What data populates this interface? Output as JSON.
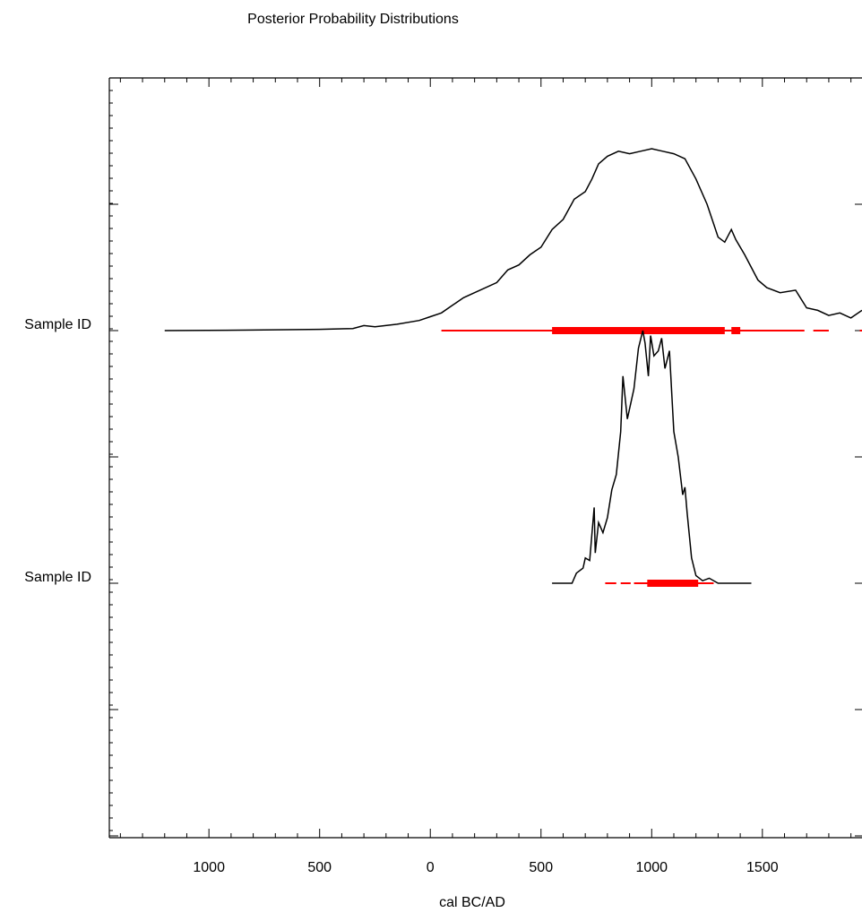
{
  "chart_data": {
    "type": "area",
    "title": "Posterior Probability Distributions",
    "xlabel": "cal BC/AD",
    "ylabel": "",
    "xlim": [
      -1450,
      1950
    ],
    "x_ticks": [
      {
        "value": -1000,
        "label": "1000"
      },
      {
        "value": -500,
        "label": "500"
      },
      {
        "value": 0,
        "label": "0"
      },
      {
        "value": 500,
        "label": "500"
      },
      {
        "value": 1000,
        "label": "1000"
      },
      {
        "value": 1500,
        "label": "1500"
      }
    ],
    "grid": false,
    "series": [
      {
        "name": "Sample ID",
        "curve": [
          [
            -1200,
            0
          ],
          [
            -800,
            0.002
          ],
          [
            -500,
            0.005
          ],
          [
            -350,
            0.008
          ],
          [
            -300,
            0.02
          ],
          [
            -250,
            0.015
          ],
          [
            -150,
            0.025
          ],
          [
            -50,
            0.04
          ],
          [
            0,
            0.055
          ],
          [
            50,
            0.07
          ],
          [
            100,
            0.1
          ],
          [
            150,
            0.13
          ],
          [
            200,
            0.15
          ],
          [
            300,
            0.19
          ],
          [
            350,
            0.24
          ],
          [
            400,
            0.26
          ],
          [
            450,
            0.3
          ],
          [
            500,
            0.33
          ],
          [
            550,
            0.4
          ],
          [
            600,
            0.44
          ],
          [
            650,
            0.52
          ],
          [
            700,
            0.55
          ],
          [
            730,
            0.6
          ],
          [
            760,
            0.66
          ],
          [
            800,
            0.69
          ],
          [
            850,
            0.71
          ],
          [
            900,
            0.7
          ],
          [
            950,
            0.71
          ],
          [
            1000,
            0.72
          ],
          [
            1050,
            0.71
          ],
          [
            1100,
            0.7
          ],
          [
            1150,
            0.68
          ],
          [
            1200,
            0.6
          ],
          [
            1250,
            0.5
          ],
          [
            1300,
            0.37
          ],
          [
            1330,
            0.35
          ],
          [
            1360,
            0.4
          ],
          [
            1380,
            0.36
          ],
          [
            1420,
            0.3
          ],
          [
            1480,
            0.2
          ],
          [
            1520,
            0.17
          ],
          [
            1580,
            0.15
          ],
          [
            1650,
            0.16
          ],
          [
            1700,
            0.09
          ],
          [
            1750,
            0.08
          ],
          [
            1800,
            0.06
          ],
          [
            1850,
            0.07
          ],
          [
            1900,
            0.05
          ],
          [
            1950,
            0.08
          ]
        ],
        "ranges_95": [
          [
            50,
            1690
          ],
          [
            1730,
            1800
          ],
          [
            1940,
            1950
          ]
        ],
        "ranges_68": [
          [
            550,
            1330
          ],
          [
            1360,
            1400
          ]
        ]
      },
      {
        "name": "Sample ID",
        "curve": [
          [
            550,
            0
          ],
          [
            640,
            0
          ],
          [
            660,
            0.04
          ],
          [
            690,
            0.06
          ],
          [
            700,
            0.1
          ],
          [
            720,
            0.09
          ],
          [
            740,
            0.3
          ],
          [
            745,
            0.12
          ],
          [
            760,
            0.24
          ],
          [
            780,
            0.2
          ],
          [
            800,
            0.26
          ],
          [
            820,
            0.37
          ],
          [
            840,
            0.43
          ],
          [
            860,
            0.6
          ],
          [
            870,
            0.82
          ],
          [
            890,
            0.65
          ],
          [
            920,
            0.77
          ],
          [
            940,
            0.93
          ],
          [
            960,
            1
          ],
          [
            970,
            0.95
          ],
          [
            985,
            0.82
          ],
          [
            995,
            0.98
          ],
          [
            1010,
            0.9
          ],
          [
            1030,
            0.92
          ],
          [
            1045,
            0.97
          ],
          [
            1060,
            0.85
          ],
          [
            1080,
            0.92
          ],
          [
            1100,
            0.6
          ],
          [
            1120,
            0.5
          ],
          [
            1140,
            0.35
          ],
          [
            1150,
            0.38
          ],
          [
            1160,
            0.28
          ],
          [
            1180,
            0.1
          ],
          [
            1200,
            0.03
          ],
          [
            1230,
            0.01
          ],
          [
            1260,
            0.02
          ],
          [
            1300,
            0
          ],
          [
            1450,
            0
          ]
        ],
        "ranges_95": [
          [
            790,
            840
          ],
          [
            860,
            905
          ],
          [
            920,
            1280
          ]
        ],
        "ranges_68": [
          [
            980,
            1210
          ]
        ]
      }
    ]
  }
}
